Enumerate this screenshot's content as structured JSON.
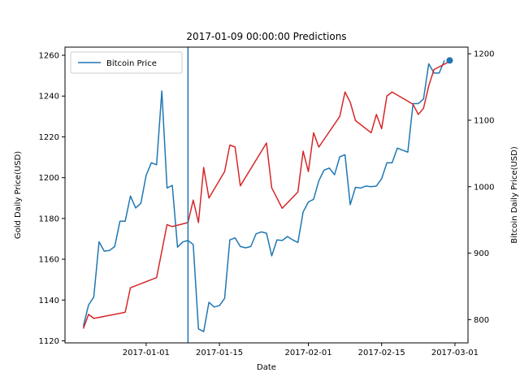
{
  "chart_data": {
    "type": "line",
    "title": "2017-01-09 00:00:00 Predictions",
    "xlabel": "Date",
    "ylabel_left": "Gold Daily Price(USD)",
    "ylabel_right": "Bitcoin Daily Price(USD)",
    "x_ticks": [
      "2017-01-01",
      "2017-01-15",
      "2017-02-01",
      "2017-02-15",
      "2017-03-01"
    ],
    "ylim_left": [
      1119,
      1264
    ],
    "yticks_left": [
      1120,
      1140,
      1160,
      1180,
      1200,
      1220,
      1240,
      1260
    ],
    "ylim_right": [
      765,
      1210
    ],
    "yticks_right": [
      800,
      900,
      1000,
      1100,
      1200
    ],
    "legend": [
      "Bitcoin Price"
    ],
    "legend_position": "upper left",
    "vline_date": "2017-01-09",
    "colors": {
      "bitcoin": "#1f77b4",
      "gold": "#d62728",
      "vline": "#1f77b4"
    },
    "series": [
      {
        "name": "Bitcoin Price",
        "axis": "right",
        "x": [
          "2016-12-20",
          "2016-12-21",
          "2016-12-22",
          "2016-12-23",
          "2016-12-24",
          "2016-12-25",
          "2016-12-26",
          "2016-12-27",
          "2016-12-28",
          "2016-12-29",
          "2016-12-30",
          "2016-12-31",
          "2017-01-01",
          "2017-01-02",
          "2017-01-03",
          "2017-01-04",
          "2017-01-05",
          "2017-01-06",
          "2017-01-07",
          "2017-01-08",
          "2017-01-09",
          "2017-01-10",
          "2017-01-11",
          "2017-01-12",
          "2017-01-13",
          "2017-01-14",
          "2017-01-15",
          "2017-01-16",
          "2017-01-17",
          "2017-01-18",
          "2017-01-19",
          "2017-01-20",
          "2017-01-21",
          "2017-01-22",
          "2017-01-23",
          "2017-01-24",
          "2017-01-25",
          "2017-01-26",
          "2017-01-27",
          "2017-01-28",
          "2017-01-29",
          "2017-01-30",
          "2017-01-31",
          "2017-02-01",
          "2017-02-02",
          "2017-02-03",
          "2017-02-04",
          "2017-02-05",
          "2017-02-06",
          "2017-02-07",
          "2017-02-08",
          "2017-02-09",
          "2017-02-10",
          "2017-02-11",
          "2017-02-12",
          "2017-02-13",
          "2017-02-14",
          "2017-02-15",
          "2017-02-16",
          "2017-02-17",
          "2017-02-18",
          "2017-02-19",
          "2017-02-20",
          "2017-02-21",
          "2017-02-22",
          "2017-02-23",
          "2017-02-24",
          "2017-02-25",
          "2017-02-26",
          "2017-02-27"
        ],
        "values": [
          790,
          822,
          834,
          917,
          903,
          904,
          910,
          948,
          948,
          986,
          968,
          975,
          1017,
          1036,
          1033,
          1144,
          998,
          1002,
          909,
          917,
          919,
          913,
          786,
          782,
          826,
          819,
          821,
          832,
          920,
          923,
          910,
          908,
          910,
          929,
          932,
          930,
          896,
          920,
          919,
          925,
          920,
          916,
          962,
          977,
          981,
          1009,
          1025,
          1028,
          1018,
          1045,
          1048,
          973,
          999,
          998,
          1001,
          1000,
          1001,
          1012,
          1036,
          1036,
          1058,
          1055,
          1052,
          1125,
          1125,
          1132,
          1185,
          1171,
          1171,
          1190
        ]
      },
      {
        "name": "",
        "axis": "left",
        "x": [
          "2016-12-20",
          "2016-12-21",
          "2016-12-22",
          "2016-12-28",
          "2016-12-29",
          "2017-01-03",
          "2017-01-05",
          "2017-01-06",
          "2017-01-09",
          "2017-01-10",
          "2017-01-11",
          "2017-01-12",
          "2017-01-13",
          "2017-01-16",
          "2017-01-17",
          "2017-01-18",
          "2017-01-19",
          "2017-01-24",
          "2017-01-25",
          "2017-01-27",
          "2017-01-30",
          "2017-01-31",
          "2017-02-01",
          "2017-02-02",
          "2017-02-03",
          "2017-02-07",
          "2017-02-08",
          "2017-02-09",
          "2017-02-10",
          "2017-02-13",
          "2017-02-14",
          "2017-02-15",
          "2017-02-16",
          "2017-02-17",
          "2017-02-21",
          "2017-02-22",
          "2017-02-23",
          "2017-02-24",
          "2017-02-25",
          "2017-02-28"
        ],
        "values": [
          1126,
          1133,
          1131,
          1134,
          1146,
          1151,
          1177,
          1176,
          1178,
          1189,
          1178,
          1205,
          1190,
          1203,
          1216,
          1215,
          1196,
          1217,
          1195,
          1185,
          1193,
          1213,
          1203,
          1222,
          1215,
          1230,
          1242,
          1237,
          1228,
          1222,
          1231,
          1224,
          1240,
          1242,
          1236,
          1231,
          1234,
          1245,
          1253,
          1257
        ]
      }
    ],
    "marker_point": {
      "x": "2017-02-28",
      "axis": "right",
      "value": 1190
    }
  }
}
